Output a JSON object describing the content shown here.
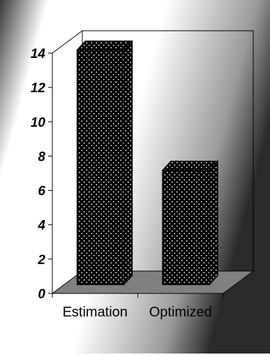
{
  "chart_data": {
    "type": "bar",
    "categories": [
      "Estimation",
      "Optimized"
    ],
    "values": [
      14,
      7
    ],
    "ylim": [
      0,
      14
    ],
    "yticks": [
      "0",
      "2",
      "4",
      "6",
      "8",
      "10",
      "12",
      "14"
    ],
    "title": "",
    "xlabel": "",
    "ylabel": "",
    "grid": false,
    "three_d": true,
    "bar_fill": "dotted",
    "colors": {
      "bar": "#000000",
      "bar_dots": "#ffffff",
      "floor": "#808080",
      "background_light": "#ffffff",
      "background_dark": "#2a2a2a"
    }
  }
}
